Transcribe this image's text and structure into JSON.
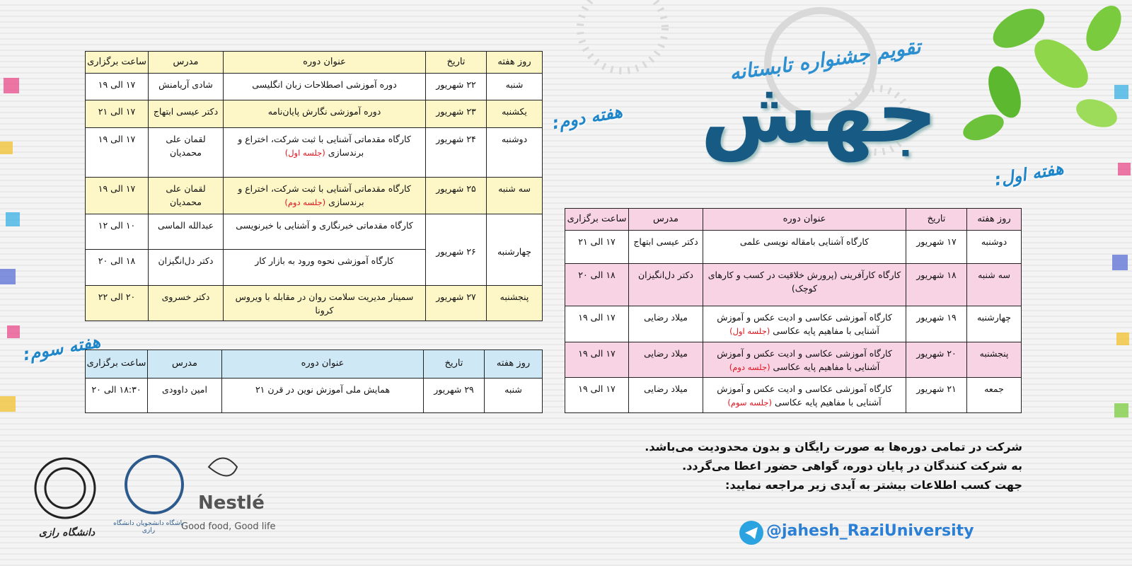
{
  "header": {
    "title": "تقویم جشنواره تابستانه",
    "logo_text": "جهش"
  },
  "weeks": [
    {
      "label": "هفته اول:",
      "columns": [
        "روز هفته",
        "تاریخ",
        "عنوان دوره",
        "مدرس",
        "ساعت برگزاری"
      ],
      "rows": [
        {
          "day": "دوشنبه",
          "date": "۱۷ شهریور",
          "sessions": [
            {
              "title": "کارگاه آشنایی بامقاله نویسی علمی",
              "teacher": "دکتر عیسی ابتهاج",
              "time": "۱۷ الی ۲۱"
            }
          ]
        },
        {
          "day": "سه شنبه",
          "date": "۱۸ شهریور",
          "sessions": [
            {
              "title": "کارگاه کارآفرینی (پرورش خلاقیت در کسب و کارهای کوچک)",
              "teacher": "دکتر دل‌انگیزان",
              "time": "۱۸ الی ۲۰"
            }
          ]
        },
        {
          "day": "چهارشنبه",
          "date": "۱۹ شهریور",
          "sessions": [
            {
              "title": "کارگاه آموزشی عکاسی و ادیت عکس و آموزش آشنایی با مفاهیم پایه عکاسی",
              "note": "(جلسه اول)",
              "teacher": "میلاد رضایی",
              "time": "۱۷ الی ۱۹"
            }
          ]
        },
        {
          "day": "پنجشنبه",
          "date": "۲۰ شهریور",
          "sessions": [
            {
              "title": "کارگاه آموزشی عکاسی و ادیت عکس و آموزش آشنایی با مفاهیم پایه عکاسی",
              "note": "(جلسه دوم)",
              "teacher": "میلاد رضایی",
              "time": "۱۷ الی ۱۹"
            }
          ]
        },
        {
          "day": "جمعه",
          "date": "۲۱ شهریور",
          "sessions": [
            {
              "title": "کارگاه آموزشی عکاسی و ادیت عکس و آموزش آشنایی با مفاهیم پایه عکاسی",
              "note": "(جلسه سوم)",
              "teacher": "میلاد رضایی",
              "time": "۱۷ الی ۱۹"
            }
          ]
        }
      ]
    },
    {
      "label": "هفته دوم:",
      "columns": [
        "روز هفته",
        "تاریخ",
        "عنوان دوره",
        "مدرس",
        "ساعت برگزاری"
      ],
      "rows": [
        {
          "day": "شنبه",
          "date": "۲۲ شهریور",
          "sessions": [
            {
              "title": "دوره آموزشی اصطلاحات زبان انگلیسی",
              "teacher": "شادی آریامنش",
              "time": "۱۷ الی ۱۹"
            }
          ]
        },
        {
          "day": "یکشنبه",
          "date": "۲۳ شهریور",
          "sessions": [
            {
              "title": "دوره آموزشی نگارش پایان‌نامه",
              "teacher": "دکتر عیسی ابتهاج",
              "time": "۱۷ الی ۲۱"
            }
          ]
        },
        {
          "day": "دوشنبه",
          "date": "۲۴ شهریور",
          "sessions": [
            {
              "title": "کارگاه مقدماتی آشنایی با ثبت شرکت، اختراع و برندسازی",
              "note": "(جلسه اول)",
              "teacher": "لقمان علی محمدیان",
              "time": "۱۷ الی ۱۹"
            }
          ]
        },
        {
          "day": "سه شنبه",
          "date": "۲۵ شهریور",
          "sessions": [
            {
              "title": "کارگاه مقدماتی آشنایی با ثبت شرکت، اختراع و برندسازی",
              "note": "(جلسه دوم)",
              "teacher": "لقمان علی محمدیان",
              "time": "۱۷ الی ۱۹"
            }
          ]
        },
        {
          "day": "چهارشنبه",
          "date": "۲۶ شهریور",
          "sessions": [
            {
              "title": "کارگاه مقدماتی خبرنگاری و آشنایی با خبرنویسی",
              "teacher": "عبدالله الماسی",
              "time": "۱۰ الی ۱۲"
            },
            {
              "title": "کارگاه آموزشی نحوه ورود به بازار کار",
              "teacher": "دکتر دل‌انگیزان",
              "time": "۱۸ الی ۲۰"
            }
          ]
        },
        {
          "day": "پنجشنبه",
          "date": "۲۷ شهریور",
          "sessions": [
            {
              "title": "سمینار مدیریت سلامت روان در مقابله با ویروس کرونا",
              "teacher": "دکتر خسروی",
              "time": "۲۰ الی ۲۲"
            }
          ]
        }
      ]
    },
    {
      "label": "هفته سوم:",
      "columns": [
        "روز هفته",
        "تاریخ",
        "عنوان دوره",
        "مدرس",
        "ساعت برگزاری"
      ],
      "rows": [
        {
          "day": "شنبه",
          "date": "۲۹ شهریور",
          "sessions": [
            {
              "title": "همایش ملی آموزش نوین در قرن ۲۱",
              "teacher": "امین داوودی",
              "time": "۱۸:۳۰ الی ۲۰"
            }
          ]
        }
      ]
    }
  ],
  "notes": [
    "شرکت در تمامی دوره‌ها به صورت رایگان و بدون محدودیت می‌باشد.",
    "به شرکت کنندگان در پایان دوره، گواهی حضور اعطا می‌گردد.",
    "جهت کسب اطلاعات بیشتر به آیدی زیر مراجعه نمایید:"
  ],
  "telegram": "@jahesh_RaziUniversity",
  "sponsors": {
    "nestle": "Nestlé",
    "nestle_slogan": "Good food, Good life",
    "club": "باشگاه دانشجویان دانشگاه رازی",
    "university": "دانشگاه رازی"
  }
}
